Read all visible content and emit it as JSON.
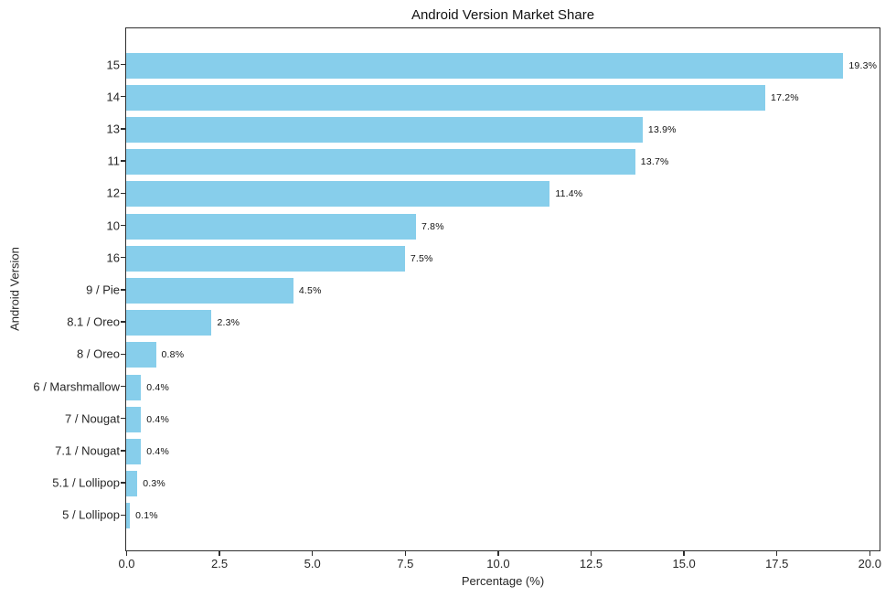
{
  "chart_data": {
    "type": "bar",
    "orientation": "horizontal",
    "title": "Android Version Market Share",
    "xlabel": "Percentage (%)",
    "ylabel": "Android Version",
    "categories": [
      "15",
      "14",
      "13",
      "11",
      "12",
      "10",
      "16",
      "9 / Pie",
      "8.1 / Oreo",
      "8 / Oreo",
      "6 / Marshmallow",
      "7 / Nougat",
      "7.1 / Nougat",
      "5.1 / Lollipop",
      "5 / Lollipop"
    ],
    "values": [
      19.3,
      17.2,
      13.9,
      13.7,
      11.4,
      7.8,
      7.5,
      4.5,
      2.3,
      0.8,
      0.4,
      0.4,
      0.4,
      0.3,
      0.1
    ],
    "value_labels": [
      "19.3%",
      "17.2%",
      "13.9%",
      "13.7%",
      "11.4%",
      "7.8%",
      "7.5%",
      "4.5%",
      "2.3%",
      "0.8%",
      "0.4%",
      "0.4%",
      "0.4%",
      "0.3%",
      "0.1%"
    ],
    "xlim": [
      0,
      20.25
    ],
    "xticks": [
      0,
      2.5,
      5,
      7.5,
      10,
      12.5,
      15,
      17.5,
      20
    ],
    "xtick_labels": [
      "0.0",
      "2.5",
      "5.0",
      "7.5",
      "10.0",
      "12.5",
      "15.0",
      "17.5",
      "20.0"
    ],
    "bar_color": "#87CEEB",
    "grid": false,
    "legend_position": "none"
  }
}
